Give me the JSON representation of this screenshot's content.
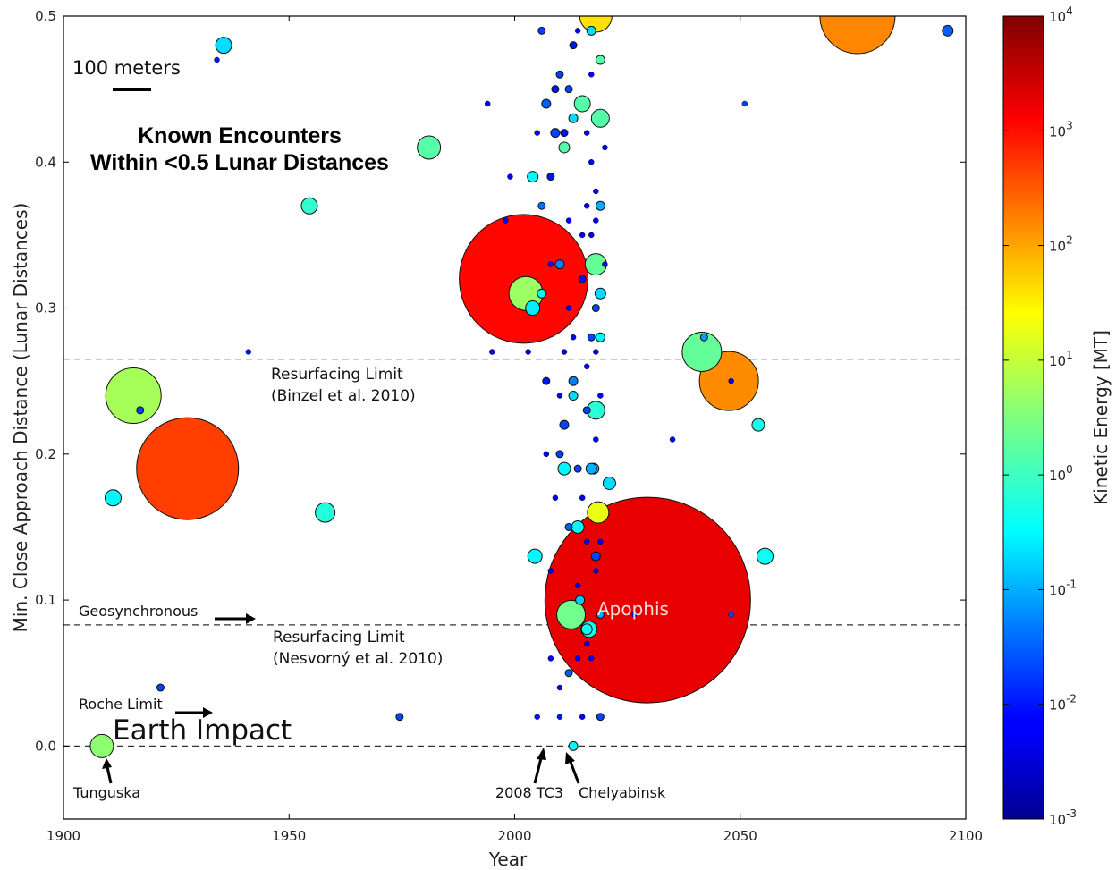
{
  "chart_data": {
    "type": "scatter",
    "xlabel": "Year",
    "ylabel": "Min. Close Approach Distance (Lunar Distances)",
    "xlim": [
      1900,
      2100
    ],
    "ylim": [
      -0.05,
      0.5
    ],
    "x_ticks": [
      "1900",
      "1950",
      "2000",
      "2050",
      "2100"
    ],
    "y_ticks": [
      "0.0",
      "0.1",
      "0.2",
      "0.3",
      "0.4",
      "0.5"
    ],
    "colorbar": {
      "label": "Kinetic Energy [MT]",
      "scale": "log",
      "range": [
        0.001,
        10000
      ],
      "tick_bases": [
        "10",
        "10",
        "10",
        "10",
        "10",
        "10",
        "10",
        "10"
      ],
      "tick_exponents": [
        "-3",
        "-2",
        "-1",
        "0",
        "1",
        "2",
        "3",
        "4"
      ]
    },
    "size_legend": {
      "label": "100 meters"
    },
    "title_lines": [
      "Known Encounters",
      "Within <0.5 Lunar Distances"
    ],
    "reference_lines": [
      {
        "y": 0.265,
        "label_lines": [
          "Resurfacing Limit",
          "(Binzel et al. 2010)"
        ]
      },
      {
        "y": 0.083,
        "label_lines": [
          "Resurfacing Limit",
          "(Nesvorný  et al. 2010)"
        ]
      },
      {
        "y": 0.0,
        "label_lines": []
      }
    ],
    "annotations": {
      "geosynchronous": "Geosynchronous",
      "roche": "Roche Limit",
      "impact": "Earth Impact",
      "tunguska": "Tunguska",
      "tc3": "2008 TC3",
      "chelyabinsk": "Chelyabinsk",
      "apophis": "Apophis"
    },
    "points": [
      {
        "x": 2029.5,
        "y": 0.1,
        "e": 1800,
        "r": 115
      },
      {
        "x": 2002,
        "y": 0.32,
        "e": 1100,
        "r": 72
      },
      {
        "x": 1927.5,
        "y": 0.19,
        "e": 480,
        "r": 57
      },
      {
        "x": 2076,
        "y": 0.5,
        "e": 160,
        "r": 42
      },
      {
        "x": 2047.5,
        "y": 0.25,
        "e": 150,
        "r": 33
      },
      {
        "x": 1915.5,
        "y": 0.24,
        "e": 6,
        "r": 31
      },
      {
        "x": 2018,
        "y": 0.5,
        "e": 40,
        "r": 18
      },
      {
        "x": 2002.5,
        "y": 0.31,
        "e": 5,
        "r": 19
      },
      {
        "x": 2041.5,
        "y": 0.27,
        "e": 2,
        "r": 22
      },
      {
        "x": 1908.5,
        "y": 0.0,
        "e": 4,
        "r": 13
      },
      {
        "x": 1981,
        "y": 0.41,
        "e": 1.6,
        "r": 13
      },
      {
        "x": 1958,
        "y": 0.16,
        "e": 0.6,
        "r": 11
      },
      {
        "x": 1954.5,
        "y": 0.37,
        "e": 0.8,
        "r": 9
      },
      {
        "x": 1935.5,
        "y": 0.48,
        "e": 0.2,
        "r": 9
      },
      {
        "x": 1911,
        "y": 0.17,
        "e": 0.3,
        "r": 9
      },
      {
        "x": 2012.5,
        "y": 0.09,
        "e": 2.5,
        "r": 16
      },
      {
        "x": 2018.5,
        "y": 0.16,
        "e": 18,
        "r": 12
      },
      {
        "x": 2018,
        "y": 0.33,
        "e": 2,
        "r": 12
      },
      {
        "x": 2018,
        "y": 0.23,
        "e": 0.7,
        "r": 10
      },
      {
        "x": 2019,
        "y": 0.43,
        "e": 1.5,
        "r": 10
      },
      {
        "x": 2015,
        "y": 0.44,
        "e": 1.5,
        "r": 9
      },
      {
        "x": 2054,
        "y": 0.22,
        "e": 0.5,
        "r": 7
      },
      {
        "x": 2055.5,
        "y": 0.13,
        "e": 0.4,
        "r": 9
      },
      {
        "x": 2004.5,
        "y": 0.13,
        "e": 0.3,
        "r": 8
      },
      {
        "x": 2004,
        "y": 0.3,
        "e": 0.25,
        "r": 8
      },
      {
        "x": 2016.5,
        "y": 0.08,
        "e": 0.5,
        "r": 9
      },
      {
        "x": 2014,
        "y": 0.15,
        "e": 0.3,
        "r": 7
      },
      {
        "x": 2021,
        "y": 0.18,
        "e": 0.2,
        "r": 7
      },
      {
        "x": 2017.5,
        "y": 0.19,
        "e": 0.1,
        "r": 6
      },
      {
        "x": 2017,
        "y": 0.19,
        "e": 0.1,
        "r": 6
      },
      {
        "x": 2019,
        "y": 0.31,
        "e": 0.2,
        "r": 6
      },
      {
        "x": 2013,
        "y": 0.43,
        "e": 0.2,
        "r": 5
      },
      {
        "x": 2011,
        "y": 0.41,
        "e": 1.5,
        "r": 6
      },
      {
        "x": 2016,
        "y": 0.08,
        "e": 0.4,
        "r": 6
      },
      {
        "x": 2011,
        "y": 0.19,
        "e": 0.3,
        "r": 7
      },
      {
        "x": 2006,
        "y": 0.31,
        "e": 0.3,
        "r": 5
      },
      {
        "x": 2004,
        "y": 0.39,
        "e": 0.3,
        "r": 6
      },
      {
        "x": 2019,
        "y": 0.47,
        "e": 1.5,
        "r": 5
      },
      {
        "x": 2011,
        "y": 0.22,
        "e": 0.02,
        "r": 5
      },
      {
        "x": 2013,
        "y": 0.25,
        "e": 0.05,
        "r": 5
      },
      {
        "x": 2013,
        "y": 0.24,
        "e": 0.2,
        "r": 5
      },
      {
        "x": 2019,
        "y": 0.28,
        "e": 0.3,
        "r": 5
      },
      {
        "x": 2019,
        "y": 0.37,
        "e": 0.1,
        "r": 5
      },
      {
        "x": 2017,
        "y": 0.49,
        "e": 0.2,
        "r": 5
      },
      {
        "x": 2014.5,
        "y": 0.1,
        "e": 0.15,
        "r": 5
      },
      {
        "x": 2019,
        "y": 0.09,
        "e": 0.1,
        "r": 4
      },
      {
        "x": 2013,
        "y": 0.0,
        "e": 0.3,
        "r": 5
      },
      {
        "x": 2042,
        "y": 0.28,
        "e": 0.08,
        "r": 4
      },
      {
        "x": 2048,
        "y": 0.25,
        "e": 0.005,
        "r": 3
      },
      {
        "x": 2051,
        "y": 0.44,
        "e": 0.02,
        "r": 3
      },
      {
        "x": 2096,
        "y": 0.49,
        "e": 0.03,
        "r": 6
      },
      {
        "x": 2009,
        "y": 0.45,
        "e": 0.01,
        "r": 4
      },
      {
        "x": 2009,
        "y": 0.42,
        "e": 0.02,
        "r": 5
      },
      {
        "x": 2007,
        "y": 0.44,
        "e": 0.03,
        "r": 5
      },
      {
        "x": 2012,
        "y": 0.45,
        "e": 0.02,
        "r": 4
      },
      {
        "x": 2011,
        "y": 0.42,
        "e": 0.01,
        "r": 4
      },
      {
        "x": 2008,
        "y": 0.39,
        "e": 0.01,
        "r": 4
      },
      {
        "x": 2010,
        "y": 0.33,
        "e": 0.05,
        "r": 5
      },
      {
        "x": 2006,
        "y": 0.37,
        "e": 0.04,
        "r": 4
      },
      {
        "x": 2010,
        "y": 0.2,
        "e": 0.02,
        "r": 4
      },
      {
        "x": 2015,
        "y": 0.32,
        "e": 0.01,
        "r": 4
      },
      {
        "x": 2012,
        "y": 0.15,
        "e": 0.03,
        "r": 4
      },
      {
        "x": 2014,
        "y": 0.19,
        "e": 0.02,
        "r": 4
      },
      {
        "x": 2018,
        "y": 0.13,
        "e": 0.02,
        "r": 5
      },
      {
        "x": 2007,
        "y": 0.25,
        "e": 0.01,
        "r": 4
      },
      {
        "x": 2018,
        "y": 0.3,
        "e": 0.02,
        "r": 4
      },
      {
        "x": 2016,
        "y": 0.23,
        "e": 0.02,
        "r": 4
      },
      {
        "x": 2017,
        "y": 0.28,
        "e": 0.02,
        "r": 4
      },
      {
        "x": 2008,
        "y": 0.33,
        "e": 0.01,
        "r": 3
      },
      {
        "x": 2012,
        "y": 0.05,
        "e": 0.03,
        "r": 4
      },
      {
        "x": 2005,
        "y": 0.02,
        "e": 0.01,
        "r": 3
      },
      {
        "x": 2010,
        "y": 0.02,
        "e": 0.01,
        "r": 3
      },
      {
        "x": 2019,
        "y": 0.02,
        "e": 0.02,
        "r": 4
      },
      {
        "x": 2015,
        "y": 0.02,
        "e": 0.005,
        "r": 3
      },
      {
        "x": 2006,
        "y": 0.49,
        "e": 0.02,
        "r": 4
      },
      {
        "x": 2013,
        "y": 0.48,
        "e": 0.01,
        "r": 4
      },
      {
        "x": 2010,
        "y": 0.46,
        "e": 0.02,
        "r": 4
      },
      {
        "x": 2014,
        "y": 0.49,
        "e": 0.005,
        "r": 3
      },
      {
        "x": 1921.5,
        "y": 0.04,
        "e": 0.02,
        "r": 4
      },
      {
        "x": 1934,
        "y": 0.47,
        "e": 0.01,
        "r": 3
      },
      {
        "x": 1941,
        "y": 0.27,
        "e": 0.01,
        "r": 3
      },
      {
        "x": 1974.5,
        "y": 0.02,
        "e": 0.02,
        "r": 4
      },
      {
        "x": 1917,
        "y": 0.23,
        "e": 0.02,
        "r": 4
      },
      {
        "x": 1994,
        "y": 0.44,
        "e": 0.005,
        "r": 3
      },
      {
        "x": 1998,
        "y": 0.36,
        "e": 0.005,
        "r": 3
      },
      {
        "x": 1999,
        "y": 0.39,
        "e": 0.005,
        "r": 3
      },
      {
        "x": 2026.5,
        "y": 0.09,
        "e": 0.01,
        "r": 3
      },
      {
        "x": 2035,
        "y": 0.21,
        "e": 0.005,
        "r": 3
      },
      {
        "x": 2048,
        "y": 0.09,
        "e": 0.02,
        "r": 3
      },
      {
        "x": 1995,
        "y": 0.27,
        "e": 0.005,
        "r": 3
      },
      {
        "x": 2003,
        "y": 0.27,
        "e": 0.005,
        "r": 3
      },
      {
        "x": 2013,
        "y": 0.28,
        "e": 0.005,
        "r": 3
      },
      {
        "x": 2019,
        "y": 0.14,
        "e": 0.005,
        "r": 3
      },
      {
        "x": 2014,
        "y": 0.11,
        "e": 0.005,
        "r": 3
      },
      {
        "x": 2010,
        "y": 0.24,
        "e": 0.005,
        "r": 3
      },
      {
        "x": 2017,
        "y": 0.4,
        "e": 0.005,
        "r": 3
      },
      {
        "x": 2007,
        "y": 0.2,
        "e": 0.005,
        "r": 3
      },
      {
        "x": 2015,
        "y": 0.35,
        "e": 0.005,
        "r": 3
      },
      {
        "x": 2009,
        "y": 0.17,
        "e": 0.005,
        "r": 3
      },
      {
        "x": 2016,
        "y": 0.42,
        "e": 0.005,
        "r": 3
      },
      {
        "x": 2012,
        "y": 0.36,
        "e": 0.005,
        "r": 3
      },
      {
        "x": 2019,
        "y": 0.24,
        "e": 0.005,
        "r": 3
      },
      {
        "x": 2016,
        "y": 0.14,
        "e": 0.005,
        "r": 3
      },
      {
        "x": 2008,
        "y": 0.12,
        "e": 0.005,
        "r": 3
      },
      {
        "x": 2014,
        "y": 0.06,
        "e": 0.005,
        "r": 3
      },
      {
        "x": 2017,
        "y": 0.06,
        "e": 0.005,
        "r": 3
      },
      {
        "x": 2010,
        "y": 0.04,
        "e": 0.005,
        "r": 3
      },
      {
        "x": 2017,
        "y": 0.46,
        "e": 0.005,
        "r": 3
      },
      {
        "x": 2018,
        "y": 0.38,
        "e": 0.005,
        "r": 3
      },
      {
        "x": 2018,
        "y": 0.36,
        "e": 0.005,
        "r": 3
      },
      {
        "x": 2017,
        "y": 0.35,
        "e": 0.005,
        "r": 3
      },
      {
        "x": 2018,
        "y": 0.27,
        "e": 0.005,
        "r": 3
      },
      {
        "x": 2016,
        "y": 0.26,
        "e": 0.005,
        "r": 3
      },
      {
        "x": 2018,
        "y": 0.21,
        "e": 0.005,
        "r": 3
      },
      {
        "x": 2015,
        "y": 0.17,
        "e": 0.005,
        "r": 3
      },
      {
        "x": 2018,
        "y": 0.12,
        "e": 0.005,
        "r": 3
      },
      {
        "x": 2016,
        "y": 0.07,
        "e": 0.005,
        "r": 3
      },
      {
        "x": 2008,
        "y": 0.06,
        "e": 0.005,
        "r": 3
      },
      {
        "x": 2012,
        "y": 0.3,
        "e": 0.005,
        "r": 3
      },
      {
        "x": 2020,
        "y": 0.33,
        "e": 0.005,
        "r": 3
      },
      {
        "x": 2020,
        "y": 0.41,
        "e": 0.005,
        "r": 3
      },
      {
        "x": 2016,
        "y": 0.37,
        "e": 0.005,
        "r": 3
      },
      {
        "x": 2005,
        "y": 0.42,
        "e": 0.005,
        "r": 3
      },
      {
        "x": 2011,
        "y": 0.27,
        "e": 0.005,
        "r": 3
      }
    ]
  }
}
